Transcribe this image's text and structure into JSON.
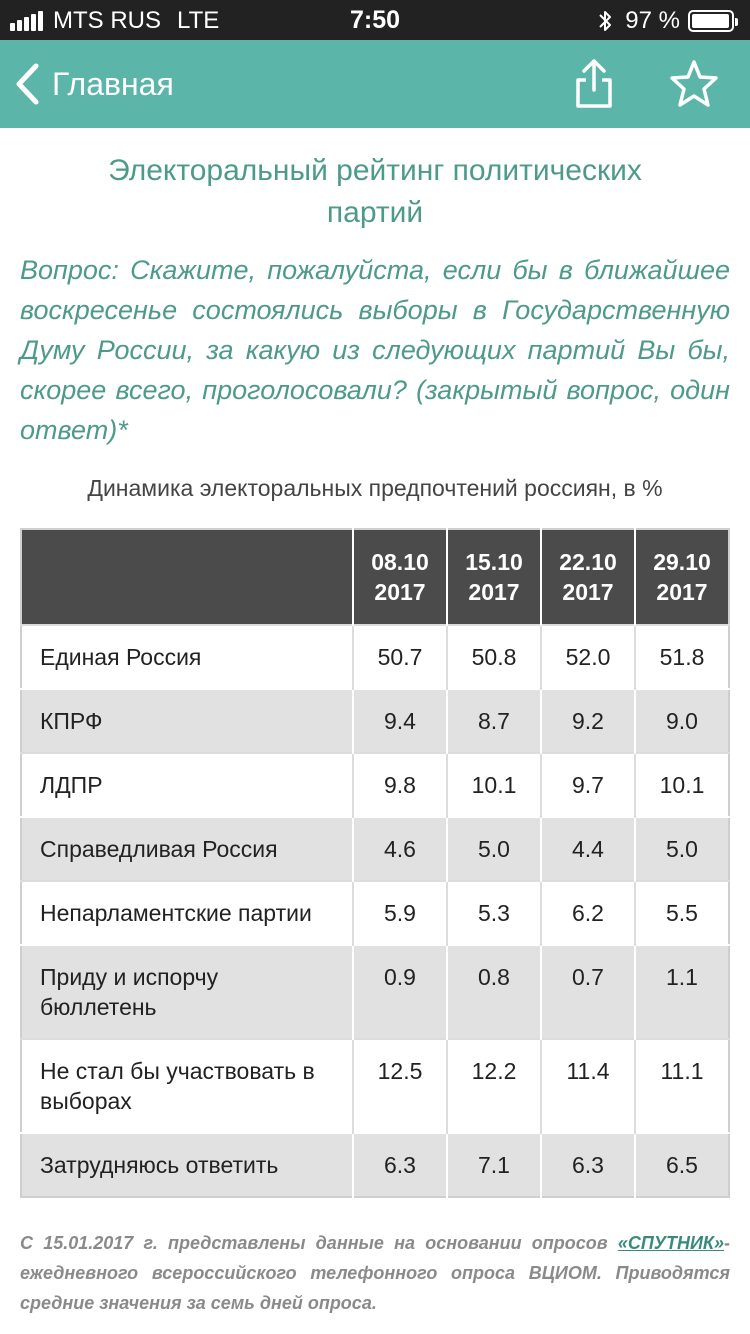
{
  "status_bar": {
    "carrier": "MTS RUS",
    "network": "LTE",
    "time": "7:50",
    "battery": "97 %",
    "battery_level": 0.97
  },
  "nav": {
    "back_label": "Главная",
    "accent_color": "#5bb5a8"
  },
  "page": {
    "title": "Электоральный рейтинг политических партий",
    "question": "Вопрос: Скажите, пожалуйста, если бы в ближайшее воскресенье состоялись выборы в Государственную Думу России, за какую из следующих партий Вы бы, скорее всего, проголосовали? (закрытый вопрос, один ответ)*",
    "table_caption": "Динамика электоральных предпочтений россиян, в %"
  },
  "table": {
    "columns": [
      {
        "line1": "08.10",
        "line2": "2017"
      },
      {
        "line1": "15.10",
        "line2": "2017"
      },
      {
        "line1": "22.10",
        "line2": "2017"
      },
      {
        "line1": "29.10",
        "line2": "2017"
      }
    ],
    "rows": [
      {
        "party": "Единая Россия",
        "values": [
          "50.7",
          "50.8",
          "52.0",
          "51.8"
        ]
      },
      {
        "party": "КПРФ",
        "values": [
          "9.4",
          "8.7",
          "9.2",
          "9.0"
        ]
      },
      {
        "party": "ЛДПР",
        "values": [
          "9.8",
          "10.1",
          "9.7",
          "10.1"
        ]
      },
      {
        "party": "Справедливая Россия",
        "values": [
          "4.6",
          "5.0",
          "4.4",
          "5.0"
        ]
      },
      {
        "party": "Непарламентские партии",
        "values": [
          "5.9",
          "5.3",
          "6.2",
          "5.5"
        ]
      },
      {
        "party": "Приду и испорчу бюллетень",
        "values": [
          "0.9",
          "0.8",
          "0.7",
          "1.1"
        ]
      },
      {
        "party": "Не стал бы участвовать в выборах",
        "values": [
          "12.5",
          "12.2",
          "11.4",
          "11.1"
        ]
      },
      {
        "party": "Затрудняюсь ответить",
        "values": [
          "6.3",
          "7.1",
          "6.3",
          "6.5"
        ]
      }
    ]
  },
  "footnote": {
    "before": "С 15.01.2017 г. представлены данные на основании опросов ",
    "link": "«СПУТНИК»",
    "after": "-ежедневного всероссийского телефонного опроса ВЦИОМ. Приводятся средние значения за семь дней опроса."
  }
}
